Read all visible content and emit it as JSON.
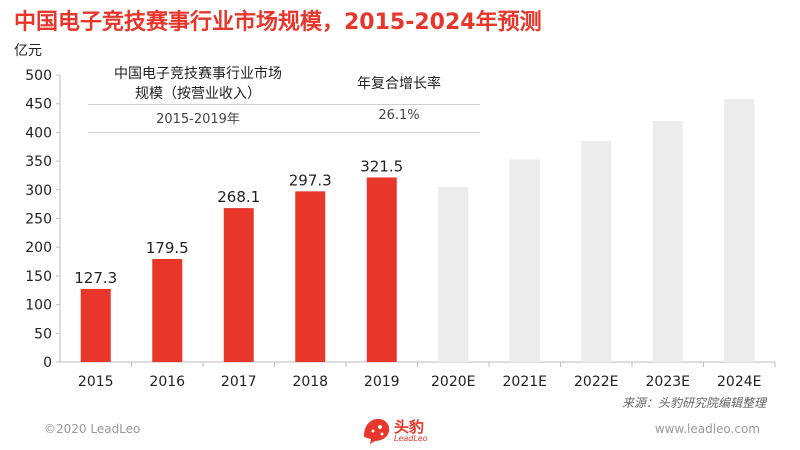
{
  "header": {
    "title": "中国电子竞技赛事行业市场规模，2015-2024年预测",
    "unit": "亿元"
  },
  "summary_table": {
    "col1_header": "中国电子竞技赛事行业市场\n规模（按营业收入）",
    "col2_header": "年复合增长率",
    "period": "2015-2019年",
    "cagr": "26.1%"
  },
  "footer": {
    "source": "来源：头豹研究院编辑整理",
    "copyright": "©2020 LeadLeo",
    "website": "www.leadleo.com",
    "logo_cn": "头豹",
    "logo_en": "LeadLeo"
  },
  "colors": {
    "actual": "#e8362a",
    "forecast": "#ececec",
    "title": "#e8362a"
  },
  "chart_data": {
    "type": "bar",
    "title": "中国电子竞技赛事行业市场规模，2015-2024年预测",
    "ylabel": "亿元",
    "xlabel": "",
    "ylim": [
      0,
      500
    ],
    "yticks": [
      0,
      50,
      100,
      150,
      200,
      250,
      300,
      350,
      400,
      450,
      500
    ],
    "grid": false,
    "categories": [
      "2015",
      "2016",
      "2017",
      "2018",
      "2019",
      "2020E",
      "2021E",
      "2022E",
      "2023E",
      "2024E"
    ],
    "values": [
      127.3,
      179.5,
      268.1,
      297.3,
      321.5,
      305,
      353,
      385,
      420,
      458
    ],
    "labels": [
      "127.3",
      "179.5",
      "268.1",
      "297.3",
      "321.5",
      "",
      "",
      "",
      "",
      ""
    ],
    "forecast": [
      false,
      false,
      false,
      false,
      false,
      true,
      true,
      true,
      true,
      true
    ]
  }
}
